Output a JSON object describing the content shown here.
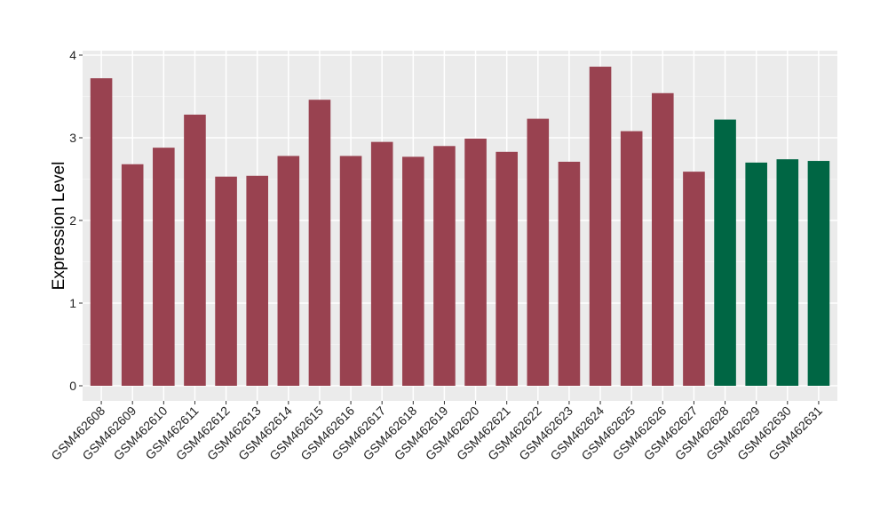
{
  "chart_data": {
    "type": "bar",
    "title": "",
    "xlabel": "",
    "ylabel": "Expression Level",
    "ylim": [
      0,
      4
    ],
    "yticks": [
      0,
      1,
      2,
      3,
      4
    ],
    "grid": true,
    "legend": "none",
    "categories": [
      "GSM462608",
      "GSM462609",
      "GSM462610",
      "GSM462611",
      "GSM462612",
      "GSM462613",
      "GSM462614",
      "GSM462615",
      "GSM462616",
      "GSM462617",
      "GSM462618",
      "GSM462619",
      "GSM462620",
      "GSM462621",
      "GSM462622",
      "GSM462623",
      "GSM462624",
      "GSM462625",
      "GSM462626",
      "GSM462627",
      "GSM462628",
      "GSM462629",
      "GSM462630",
      "GSM462631"
    ],
    "values": [
      3.72,
      2.68,
      2.88,
      3.28,
      2.53,
      2.54,
      2.78,
      3.46,
      2.78,
      2.95,
      2.77,
      2.9,
      2.99,
      2.83,
      3.23,
      2.71,
      3.86,
      3.08,
      3.54,
      2.59,
      3.22,
      2.7,
      2.74,
      2.72
    ],
    "groups": [
      "a",
      "a",
      "a",
      "a",
      "a",
      "a",
      "a",
      "a",
      "a",
      "a",
      "a",
      "a",
      "a",
      "a",
      "a",
      "a",
      "a",
      "a",
      "a",
      "a",
      "b",
      "b",
      "b",
      "b"
    ],
    "colors": {
      "a": "#994250",
      "b": "#006644"
    }
  }
}
